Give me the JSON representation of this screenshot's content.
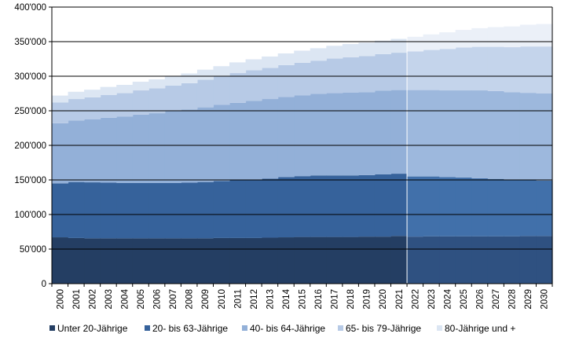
{
  "chart_data": {
    "type": "area",
    "stacked": true,
    "title": "",
    "xlabel": "",
    "ylabel": "",
    "ylim": [
      0,
      400000
    ],
    "y_ticks": [
      0,
      50000,
      100000,
      150000,
      200000,
      250000,
      300000,
      350000,
      400000
    ],
    "y_tick_labels": [
      "0",
      "50'000",
      "100'000",
      "150'000",
      "200'000",
      "250'000",
      "300'000",
      "350'000",
      "400'000"
    ],
    "grid": "horizontal",
    "legend_position": "bottom",
    "projection_start": "2022",
    "x": [
      "2000",
      "2001",
      "2002",
      "2003",
      "2004",
      "2005",
      "2006",
      "2007",
      "2008",
      "2009",
      "2010",
      "2011",
      "2012",
      "2013",
      "2014",
      "2015",
      "2016",
      "2017",
      "2018",
      "2019",
      "2020",
      "2021",
      "2022",
      "2023",
      "2024",
      "2025",
      "2026",
      "2027",
      "2028",
      "2029",
      "2030"
    ],
    "series": [
      {
        "name": "Unter 20-Jährige",
        "color": "#243e63",
        "projection_color": "#2f5181",
        "values": [
          67000,
          66000,
          65500,
          65500,
          65500,
          65500,
          65500,
          65500,
          65500,
          65500,
          66000,
          66000,
          66000,
          66500,
          67000,
          67500,
          67500,
          67500,
          67500,
          68000,
          68000,
          69000,
          68000,
          68500,
          68500,
          68500,
          68500,
          68500,
          68500,
          69000,
          69000
        ]
      },
      {
        "name": "20- bis 63-Jährige",
        "color": "#36629b",
        "projection_color": "#4170aa",
        "values": [
          78000,
          81000,
          81000,
          80500,
          80000,
          80000,
          80000,
          80000,
          80500,
          81500,
          82500,
          83500,
          84500,
          85500,
          87000,
          88000,
          89000,
          89000,
          89000,
          89000,
          90000,
          90000,
          87000,
          86500,
          85500,
          85000,
          84000,
          83000,
          82000,
          81000,
          80000
        ]
      },
      {
        "name": "40- bis 64-Jährige",
        "color": "#93b0d8",
        "projection_color": "#9db8dd",
        "values": [
          87000,
          89000,
          91000,
          94000,
          96000,
          99000,
          101000,
          104000,
          106000,
          108000,
          110000,
          112000,
          114000,
          115000,
          116000,
          117000,
          118000,
          119000,
          120000,
          120000,
          121000,
          121000,
          125000,
          125000,
          125500,
          126000,
          127000,
          127000,
          126500,
          126000,
          126000
        ]
      },
      {
        "name": "65- bis 79-Jährige",
        "color": "#b7cae6",
        "projection_color": "#c4d4eb",
        "values": [
          30000,
          31000,
          32000,
          33000,
          34000,
          35000,
          36000,
          37000,
          38000,
          40000,
          41000,
          43000,
          44000,
          45000,
          46000,
          47000,
          48000,
          50000,
          51000,
          52000,
          53000,
          54000,
          56000,
          58000,
          60000,
          62000,
          63000,
          64000,
          65000,
          67000,
          68000
        ]
      },
      {
        "name": "80-Jährige und +",
        "color": "#dce6f3",
        "projection_color": "#ebf0f8",
        "values": [
          10000,
          10500,
          11000,
          11500,
          12000,
          12500,
          13000,
          13500,
          14000,
          14500,
          15000,
          15500,
          16000,
          16500,
          17000,
          17500,
          18000,
          18500,
          19000,
          19500,
          19500,
          20000,
          21000,
          22500,
          24000,
          25500,
          27000,
          28500,
          30000,
          31500,
          32500
        ]
      }
    ]
  }
}
